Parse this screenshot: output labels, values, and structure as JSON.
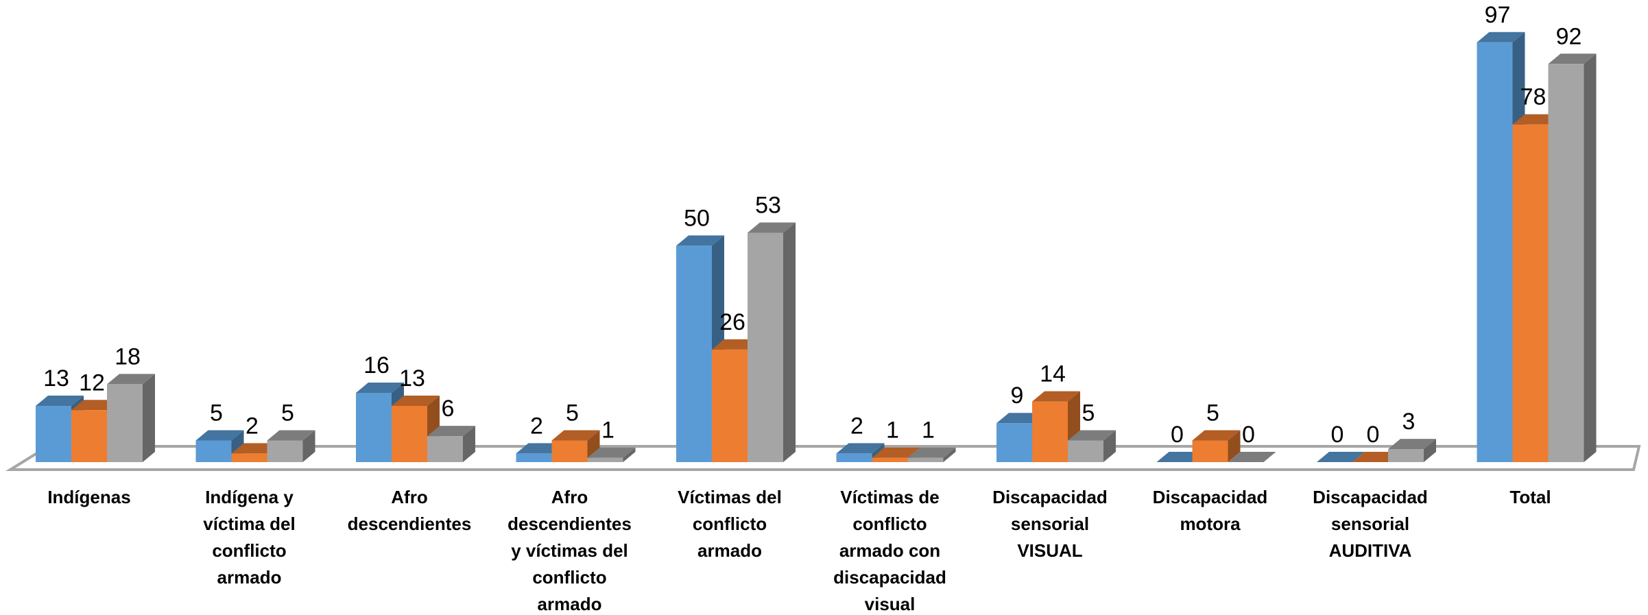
{
  "chart_data": {
    "type": "bar3d",
    "categories": [
      "Indígenas",
      "Indígena y\nvíctima del\nconflicto\narmado",
      "Afro\ndescendientes",
      "Afro\ndescendientes\ny víctimas del\nconflicto\narmado",
      "Víctimas del\nconflicto\narmado",
      "Víctimas de\nconflicto\narmado con\ndiscapacidad\nvisual",
      "Discapacidad\nsensorial\nVISUAL",
      "Discapacidad\nmotora",
      "Discapacidad\nsensorial\nAUDITIVA",
      "Total"
    ],
    "series": [
      {
        "color": "#5b9bd5",
        "values": [
          13,
          5,
          16,
          2,
          50,
          2,
          9,
          0,
          0,
          97
        ]
      },
      {
        "color": "#ed7d31",
        "values": [
          12,
          2,
          13,
          5,
          26,
          1,
          14,
          5,
          0,
          78
        ]
      },
      {
        "color": "#a5a5a5",
        "values": [
          18,
          5,
          6,
          1,
          53,
          1,
          5,
          0,
          3,
          92
        ]
      }
    ]
  }
}
